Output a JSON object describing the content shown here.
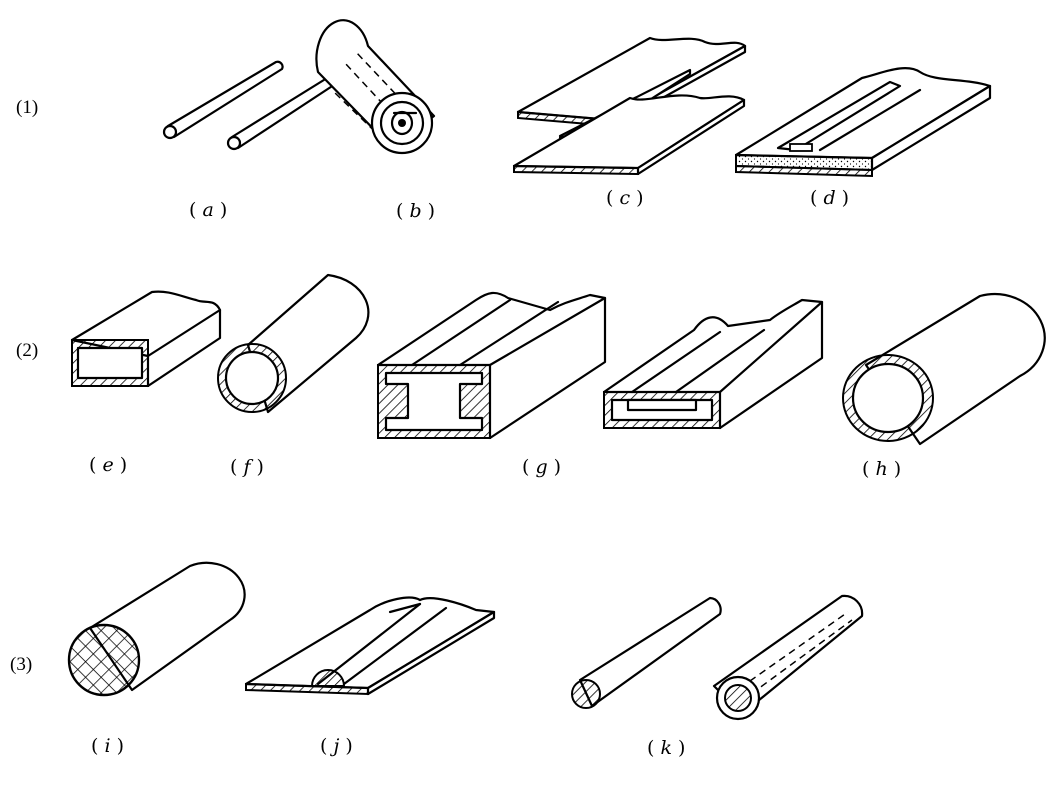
{
  "rows": [
    {
      "label": "(1)"
    },
    {
      "label": "(2)"
    },
    {
      "label": "(3)"
    }
  ],
  "figures": {
    "a": "a",
    "b": "b",
    "c": "c",
    "d": "d",
    "e": "e",
    "f": "f",
    "g": "g",
    "h": "h",
    "i": "i",
    "j": "j",
    "k": "k"
  },
  "colors": {
    "ink": "#000000",
    "paper": "#ffffff"
  }
}
